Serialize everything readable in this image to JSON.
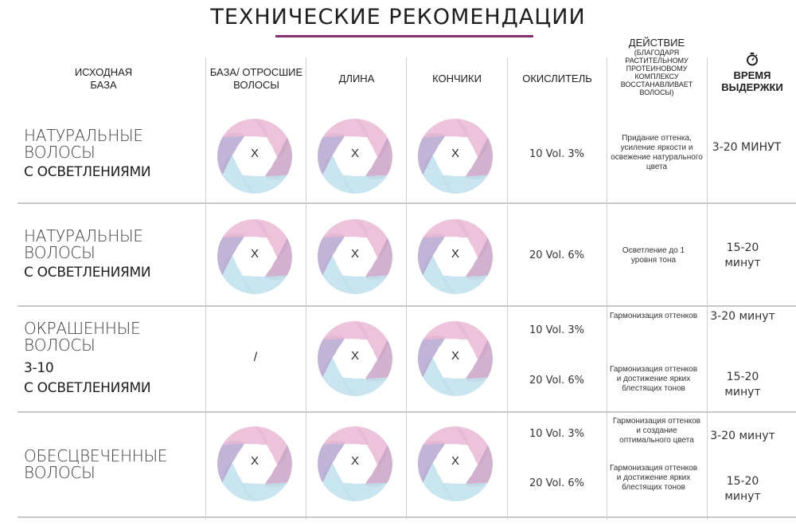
{
  "title": "ТЕХНИЧЕСКИЕ РЕКОМЕНДАЦИИ",
  "headers": {
    "base": "ИСХОДНАЯ БАЗА",
    "roots": "БАЗА/ ОТРОСШИЕ ВОЛОСЫ",
    "length": "ДЛИНА",
    "ends": "КОНЧИКИ",
    "oxidant": "ОКИСЛИТЕЛЬ",
    "action_title": "ДЕЙСТВИЕ",
    "action_note": "(БЛАГОДАРЯ РАСТИТЕЛЬНОМУ ПРОТЕИНОВОМУ КОМПЛЕКСУ ВОССТАНАВЛИВАЕТ ВОЛОСЫ)",
    "time": "ВРЕМЯ ВЫДЕРЖКИ",
    "time_icon": "stopwatch-icon"
  },
  "rows": [
    {
      "label_thin": "НАТУРАЛЬНЫЕ ВОЛОСЫ",
      "label_bold": "С ОСВЕТЛЕНИЯМИ",
      "roots": "X",
      "length": "X",
      "ends": "X",
      "oxidant": "10 Vol. 3%",
      "action": "Придание оттенка, усиление яркости и освежение натурального цвета",
      "time": "3-20 МИНУТ"
    },
    {
      "label_thin": "НАТУРАЛЬНЫЕ ВОЛОСЫ",
      "label_bold": "С ОСВЕТЛЕНИЯМИ",
      "roots": "X",
      "length": "X",
      "ends": "X",
      "oxidant": "20 Vol. 6%",
      "action": "Осветление до 1 уровня тона",
      "time": "15-20 минут"
    },
    {
      "label_thin": "ОКРАШЕННЫЕ ВОЛОСЫ",
      "label_bold_1": "3-10",
      "label_bold": "С ОСВЕТЛЕНИЯМИ",
      "roots": "/",
      "length": "X",
      "ends": "X",
      "oxidant_a": "10 Vol. 3%",
      "oxidant_b": "20 Vol. 6%",
      "action_a": "Гармонизация оттенков",
      "action_b": "Гармонизация оттенков и достижение ярких блестящих тонов",
      "time_a": "3-20 минут",
      "time_b": "15-20 минут"
    },
    {
      "label_thin": "ОБЕСЦВЕЧЕННЫЕ ВОЛОСЫ",
      "roots": "X",
      "length": "X",
      "ends": "X",
      "oxidant_a": "10 Vol. 3%",
      "oxidant_b": "20 Vol. 6%",
      "action_a": "Гармонизация оттенков и создание оптимального цвета",
      "action_b": "Гармонизация оттенков и достижение ярких блестящих тонов",
      "time_a": "3-20 минут",
      "time_b": "15-20 минут"
    }
  ],
  "colors": {
    "accent_rule": "#8a2e6e",
    "ring_pink": "#e9b9d4",
    "ring_mauve": "#c9a3c4",
    "ring_purple": "#b6a7cf",
    "ring_blue": "#bfe1ec"
  }
}
